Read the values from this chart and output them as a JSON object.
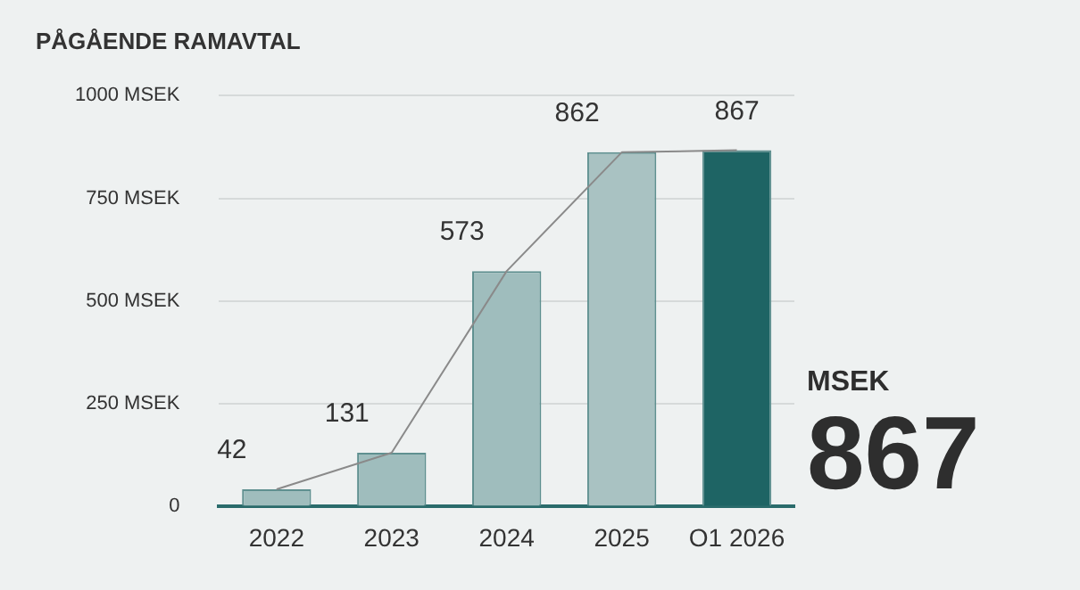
{
  "chart_data": {
    "type": "bar",
    "title": "PÅGÅENDE RAMAVTAL",
    "categories": [
      "2022",
      "2023",
      "2024",
      "2025",
      "O1 2026"
    ],
    "series": [
      {
        "colors": [
          "#9fbdbd",
          "#9fbdbd",
          "#9fbdbd",
          "#a9c2c2",
          "#1e6464"
        ],
        "values": [
          42,
          131,
          573,
          862,
          867
        ],
        "value_labels": [
          "42",
          "131",
          "573",
          "862",
          "867"
        ]
      },
      {
        "type": "line",
        "color": "#8a8a8a",
        "values": [
          42,
          131,
          573,
          862,
          867
        ]
      }
    ],
    "ylim": [
      0,
      1000
    ],
    "yticks": [
      0,
      {
        "value": 250,
        "label": "250 MSEK"
      },
      {
        "value": 500,
        "label": "500 MSEK"
      },
      {
        "value": 750,
        "label": "750 MSEK"
      },
      {
        "value": 1000,
        "label": "1000 MSEK"
      }
    ],
    "grid": "y",
    "marker": "none",
    "annotations": [
      "MSEK",
      "867"
    ]
  }
}
